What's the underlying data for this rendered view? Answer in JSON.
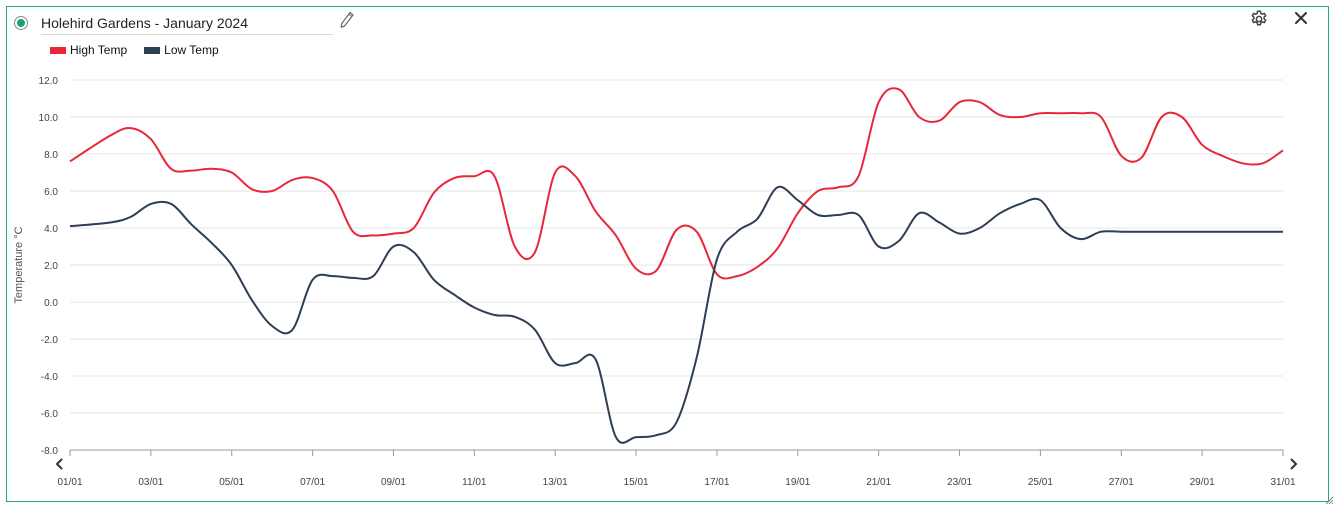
{
  "header": {
    "title": "Holehird Gardens - January 2024"
  },
  "icons": {
    "radio": "radio-selected-icon",
    "edit": "pencil-icon",
    "settings": "gear-icon",
    "close": "close-icon",
    "prev": "chevron-left-icon",
    "next": "chevron-right-icon",
    "resize": "resize-grip-icon"
  },
  "colors": {
    "accent": "#1ba27a",
    "border": "#2aa387",
    "high": "#e8283a",
    "low": "#2e3e55"
  },
  "chart_data": {
    "type": "line",
    "ylabel": "Temperature °C",
    "ylim": [
      -8,
      12
    ],
    "yticks": [
      "12.0",
      "10.0",
      "8.0",
      "6.0",
      "4.0",
      "2.0",
      "0.0",
      "-2.0",
      "-4.0",
      "-6.0",
      "-8.0"
    ],
    "xticks": [
      "01/01",
      "03/01",
      "05/01",
      "07/01",
      "09/01",
      "11/01",
      "13/01",
      "15/01",
      "17/01",
      "19/01",
      "21/01",
      "23/01",
      "25/01",
      "27/01",
      "29/01",
      "31/01"
    ],
    "grid": "horizontal",
    "legend": "top-left",
    "series": [
      {
        "name": "High Temp",
        "color": "#e8283a",
        "x": [
          1,
          2,
          2.5,
          3,
          3.5,
          4,
          4.5,
          5,
          5.5,
          6,
          6.5,
          7,
          7.5,
          8,
          8.5,
          9,
          9.5,
          10,
          10.5,
          11,
          11.5,
          12,
          12.5,
          13,
          13.5,
          14,
          14.5,
          15,
          15.5,
          16,
          16.5,
          17,
          17.5,
          18,
          18.5,
          19,
          19.5,
          20,
          20.5,
          21,
          21.5,
          22,
          22.5,
          23,
          23.5,
          24,
          24.5,
          25,
          25.5,
          26,
          26.5,
          27,
          27.5,
          28,
          28.5,
          29,
          29.5,
          30,
          30.5,
          31
        ],
        "y": [
          7.6,
          9.0,
          9.4,
          8.8,
          7.2,
          7.1,
          7.2,
          7.0,
          6.1,
          6.0,
          6.6,
          6.7,
          6.0,
          3.8,
          3.6,
          3.7,
          4.0,
          5.9,
          6.7,
          6.8,
          6.8,
          3.0,
          2.7,
          7.0,
          6.8,
          4.9,
          3.6,
          1.8,
          1.7,
          3.9,
          3.8,
          1.5,
          1.4,
          1.9,
          2.9,
          4.8,
          6.0,
          6.2,
          6.8,
          10.8,
          11.5,
          10.0,
          9.8,
          10.8,
          10.8,
          10.1,
          10.0,
          10.2,
          10.2,
          10.2,
          10.0,
          7.9,
          7.8,
          10.0,
          10.0,
          8.5,
          7.9,
          7.5,
          7.5,
          8.2
        ]
      },
      {
        "name": "Low Temp",
        "color": "#2e3e55",
        "x": [
          1,
          2,
          2.5,
          3,
          3.5,
          4,
          4.5,
          5,
          5.5,
          6,
          6.5,
          7,
          7.5,
          8,
          8.5,
          9,
          9.5,
          10,
          10.5,
          11,
          11.5,
          12,
          12.5,
          13,
          13.5,
          14,
          14.5,
          15,
          15.5,
          16,
          16.5,
          17,
          17.5,
          18,
          18.5,
          19,
          19.5,
          20,
          20.5,
          21,
          21.5,
          22,
          22.5,
          23,
          23.5,
          24,
          24.5,
          25,
          25.5,
          26,
          26.5,
          27,
          27.5,
          28,
          28.5,
          29,
          29.5,
          30,
          30.5,
          31
        ],
        "y": [
          4.1,
          4.3,
          4.6,
          5.3,
          5.3,
          4.2,
          3.2,
          2.0,
          0.1,
          -1.3,
          -1.5,
          1.2,
          1.4,
          1.3,
          1.4,
          3.0,
          2.7,
          1.2,
          0.4,
          -0.3,
          -0.7,
          -0.8,
          -1.5,
          -3.3,
          -3.3,
          -3.1,
          -7.3,
          -7.3,
          -7.2,
          -6.5,
          -3.0,
          2.3,
          3.8,
          4.5,
          6.2,
          5.5,
          4.7,
          4.7,
          4.7,
          3.0,
          3.3,
          4.8,
          4.3,
          3.7,
          4.0,
          4.8,
          5.3,
          5.5,
          4.0,
          3.4,
          3.8,
          3.8,
          3.8,
          3.8,
          3.8,
          3.8,
          3.8,
          3.8,
          3.8,
          3.8
        ]
      }
    ]
  }
}
